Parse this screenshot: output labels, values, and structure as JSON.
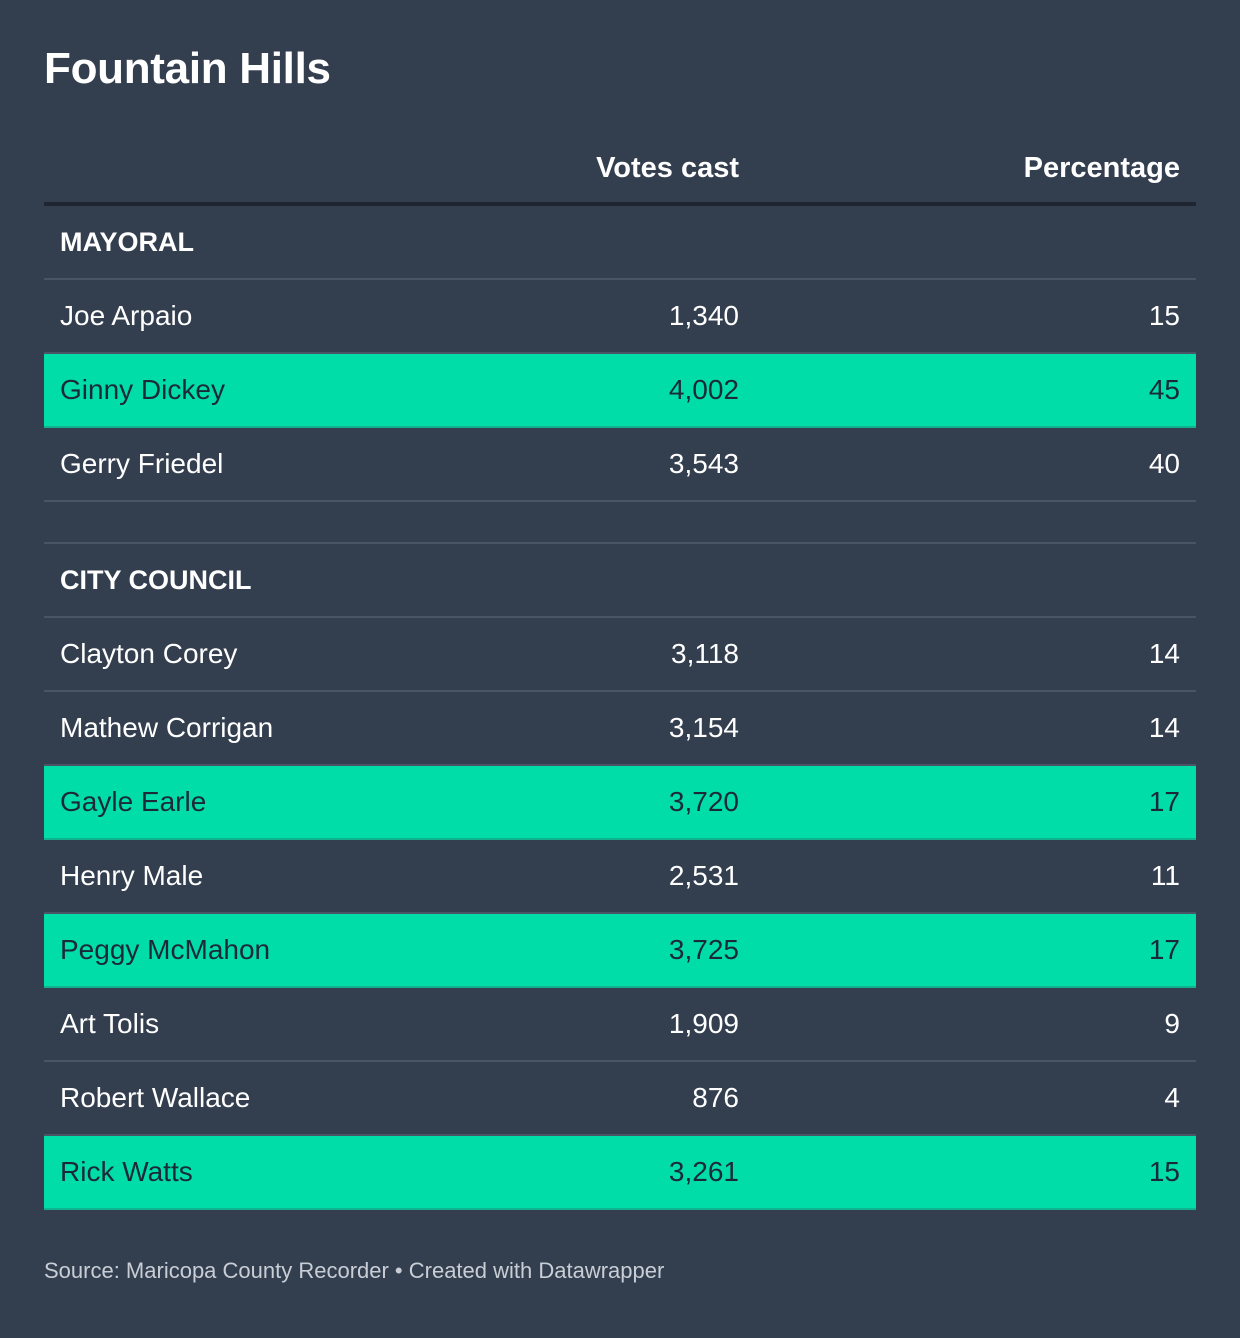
{
  "title": "Fountain Hills",
  "chart_data": {
    "type": "table",
    "title": "Fountain Hills",
    "columns": [
      "",
      "Votes cast",
      "Percentage"
    ],
    "sections": [
      {
        "label": "MAYORAL",
        "rows": [
          {
            "name": "Joe Arpaio",
            "votes": "1,340",
            "percentage": "15",
            "highlighted": false
          },
          {
            "name": "Ginny Dickey",
            "votes": "4,002",
            "percentage": "45",
            "highlighted": true
          },
          {
            "name": "Gerry Friedel",
            "votes": "3,543",
            "percentage": "40",
            "highlighted": false
          }
        ]
      },
      {
        "label": "CITY COUNCIL",
        "rows": [
          {
            "name": "Clayton Corey",
            "votes": "3,118",
            "percentage": "14",
            "highlighted": false
          },
          {
            "name": "Mathew Corrigan",
            "votes": "3,154",
            "percentage": "14",
            "highlighted": false
          },
          {
            "name": "Gayle Earle",
            "votes": "3,720",
            "percentage": "17",
            "highlighted": true
          },
          {
            "name": "Henry Male",
            "votes": "2,531",
            "percentage": "11",
            "highlighted": false
          },
          {
            "name": "Peggy McMahon",
            "votes": "3,725",
            "percentage": "17",
            "highlighted": true
          },
          {
            "name": "Art Tolis",
            "votes": "1,909",
            "percentage": "9",
            "highlighted": false
          },
          {
            "name": "Robert Wallace",
            "votes": "876",
            "percentage": "4",
            "highlighted": false
          },
          {
            "name": "Rick Watts",
            "votes": "3,261",
            "percentage": "15",
            "highlighted": true
          }
        ]
      }
    ]
  },
  "colors": {
    "background": "#333e4f",
    "highlight": "#00dda9",
    "highlight_text": "#1b2a36",
    "text": "#ffffff",
    "source_text": "#c9ced6"
  },
  "footer": {
    "source": "Source: Maricopa County Recorder • Created with Datawrapper"
  }
}
